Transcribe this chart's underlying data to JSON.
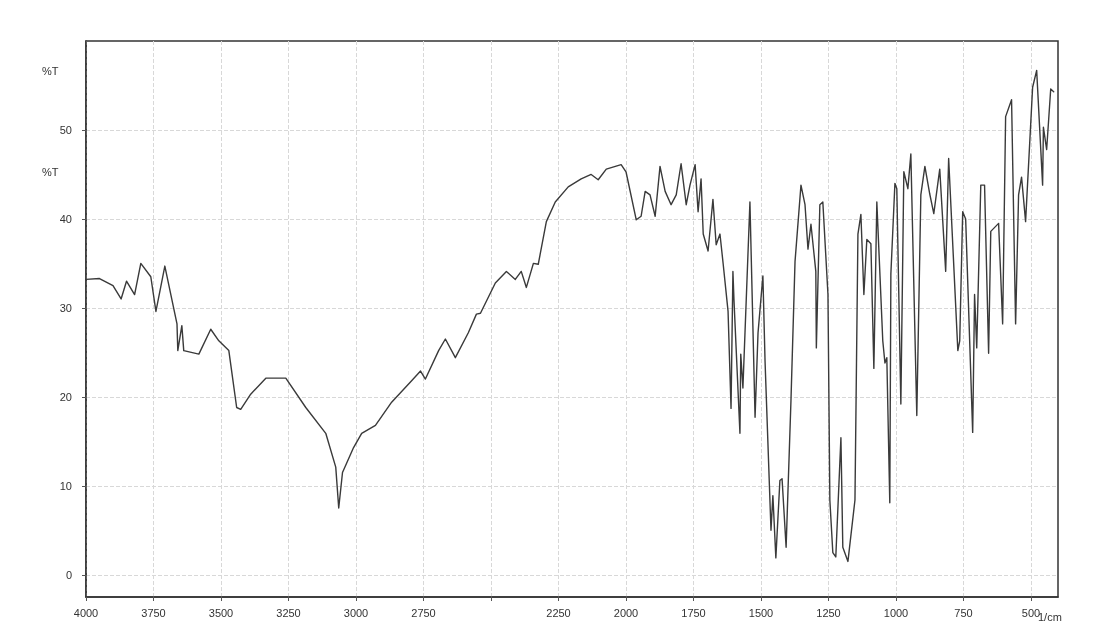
{
  "chart_data": {
    "type": "line",
    "xlabel": "1/cm",
    "ylabel": "%T",
    "annotations": [
      "%T"
    ],
    "xlim": [
      4000,
      400
    ],
    "ylim": [
      -2.5,
      60
    ],
    "xticks": [
      4000,
      3750,
      3500,
      3250,
      3000,
      2750,
      {
        "value": 2500,
        "label": null
      },
      2250,
      2000,
      1750,
      1500,
      1250,
      1000,
      750,
      500
    ],
    "yticks": [
      0,
      10,
      20,
      30,
      40,
      50
    ],
    "grid": true,
    "marker": "none",
    "line_style": "solid",
    "series": [
      {
        "color": "#3a3a3a",
        "x": [
          4000,
          3950,
          3900,
          3870,
          3850,
          3820,
          3797,
          3760,
          3741,
          3708,
          3663,
          3660,
          3645,
          3638,
          3582,
          3538,
          3508,
          3471,
          3442,
          3427,
          3390,
          3334,
          3260,
          3186,
          3112,
          3075,
          3064,
          3050,
          3009,
          2979,
          2928,
          2868,
          2794,
          2761,
          2743,
          2694,
          2669,
          2632,
          2584,
          2554,
          2539,
          2484,
          2443,
          2410,
          2388,
          2369,
          2343,
          2325,
          2295,
          2262,
          2214,
          2166,
          2129,
          2103,
          2073,
          2018,
          2000,
          1962,
          1944,
          1929,
          1911,
          1892,
          1874,
          1855,
          1833,
          1814,
          1796,
          1777,
          1763,
          1744,
          1733,
          1722,
          1714,
          1696,
          1678,
          1666,
          1652,
          1640,
          1622,
          1611,
          1604,
          1600,
          1578,
          1575,
          1567,
          1541,
          1522,
          1511,
          1493,
          1485,
          1463,
          1456,
          1445,
          1430,
          1422,
          1407,
          1389,
          1374,
          1352,
          1337,
          1326,
          1315,
          1297,
          1295,
          1282,
          1271,
          1252,
          1245,
          1234,
          1223,
          1204,
          1197,
          1178,
          1152,
          1141,
          1130,
          1119,
          1108,
          1093,
          1082,
          1071,
          1049,
          1041,
          1034,
          1023,
          1019,
          1004,
          997,
          982,
          971,
          956,
          945,
          923,
          908,
          893,
          875,
          860,
          838,
          816,
          805,
          771,
          764,
          753,
          742,
          716,
          709,
          701,
          686,
          672,
          657,
          649,
          620,
          605,
          594,
          572,
          557,
          546,
          535,
          520,
          494,
          479,
          457,
          454,
          442,
          427,
          416
        ],
        "values": [
          33.2,
          33.3,
          32.5,
          31.0,
          33.0,
          31.5,
          35.0,
          33.5,
          29.6,
          34.7,
          28.2,
          25.2,
          28.0,
          25.2,
          24.8,
          27.6,
          26.3,
          25.2,
          18.8,
          18.6,
          20.3,
          22.1,
          22.1,
          18.8,
          15.9,
          12.1,
          7.5,
          11.5,
          14.3,
          15.9,
          16.8,
          19.4,
          21.8,
          22.9,
          22.0,
          25.2,
          26.5,
          24.4,
          27.2,
          29.3,
          29.4,
          32.8,
          34.1,
          33.2,
          34.1,
          32.3,
          35.0,
          34.9,
          39.7,
          41.9,
          43.6,
          44.5,
          45.0,
          44.4,
          45.6,
          46.1,
          45.3,
          39.9,
          40.3,
          43.1,
          42.7,
          40.3,
          45.9,
          43.1,
          41.6,
          42.7,
          46.2,
          41.6,
          43.8,
          46.1,
          40.8,
          44.5,
          38.3,
          36.4,
          42.2,
          37.1,
          38.3,
          34.9,
          29.6,
          18.7,
          34.1,
          30.8,
          15.9,
          24.8,
          21.0,
          41.9,
          17.7,
          27.2,
          33.6,
          24.0,
          5.0,
          8.9,
          1.9,
          10.6,
          10.8,
          3.1,
          19.6,
          35.2,
          43.8,
          41.6,
          36.6,
          39.4,
          34.1,
          25.5,
          41.6,
          41.9,
          31.5,
          8.4,
          2.5,
          2.0,
          15.4,
          3.1,
          1.5,
          8.4,
          38.3,
          40.5,
          31.5,
          37.7,
          37.2,
          23.2,
          41.9,
          26.3,
          23.8,
          24.4,
          8.1,
          33.8,
          44.0,
          43.4,
          19.2,
          45.3,
          43.4,
          47.3,
          17.9,
          42.7,
          45.9,
          42.8,
          40.6,
          45.6,
          34.1,
          46.8,
          25.2,
          26.3,
          40.8,
          40.0,
          16.0,
          31.5,
          25.5,
          43.8,
          43.8,
          24.9,
          38.6,
          39.5,
          28.2,
          51.5,
          53.4,
          28.2,
          42.7,
          44.7,
          39.7,
          54.8,
          56.7,
          43.8,
          50.3,
          47.8,
          54.6,
          54.3
        ]
      }
    ]
  }
}
